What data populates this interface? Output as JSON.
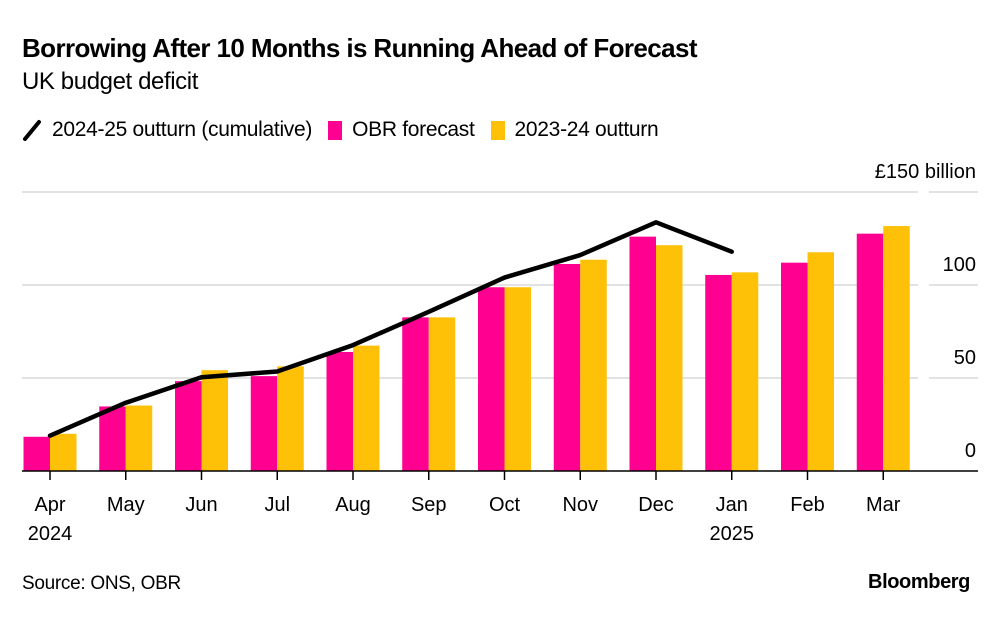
{
  "colors": {
    "obr": "#FF0090",
    "prev": "#FFC107",
    "line": "#000000",
    "grid": "#D9D9D9",
    "axis": "#000000"
  },
  "chart_data": {
    "type": "bar",
    "title": "Borrowing After 10 Months is Running Ahead of Forecast",
    "subtitle": "UK budget deficit",
    "xlabel": "",
    "ylabel": "£ billion",
    "ylim": [
      0,
      150
    ],
    "yticks": [
      0,
      50,
      100,
      150
    ],
    "ytick_labels": [
      "0",
      "50",
      "100",
      "£150 billion"
    ],
    "grid": true,
    "legend_position": "top-left",
    "categories": [
      "Apr",
      "May",
      "Jun",
      "Jul",
      "Aug",
      "Sep",
      "Oct",
      "Nov",
      "Dec",
      "Jan",
      "Feb",
      "Mar"
    ],
    "category_sublabels": [
      "2024",
      "",
      "",
      "",
      "",
      "",
      "",
      "",
      "",
      "2025",
      "",
      ""
    ],
    "series": [
      {
        "name": "OBR forecast",
        "type": "bar",
        "values": [
          18.4,
          34.7,
          48.3,
          51.0,
          64.0,
          82.6,
          98.8,
          111.3,
          126.0,
          105.4,
          112.0,
          127.6
        ]
      },
      {
        "name": "2023-24 outturn",
        "type": "bar",
        "values": [
          20.0,
          35.2,
          54.2,
          56.3,
          67.4,
          82.6,
          98.8,
          113.6,
          121.4,
          106.8,
          117.6,
          131.7
        ]
      },
      {
        "name": "2024-25 outturn (cumulative)",
        "type": "line",
        "values": [
          19.0,
          36.7,
          50.4,
          53.5,
          67.7,
          85.6,
          104.0,
          116.1,
          133.7,
          117.9,
          null,
          null
        ]
      }
    ]
  },
  "legend": [
    {
      "label": "2024-25 outturn (cumulative)",
      "kind": "line"
    },
    {
      "label": "OBR forecast",
      "kind": "bar"
    },
    {
      "label": "2023-24 outturn",
      "kind": "bar"
    }
  ],
  "footer": {
    "source": "Source: ONS, OBR",
    "brand": "Bloomberg"
  }
}
